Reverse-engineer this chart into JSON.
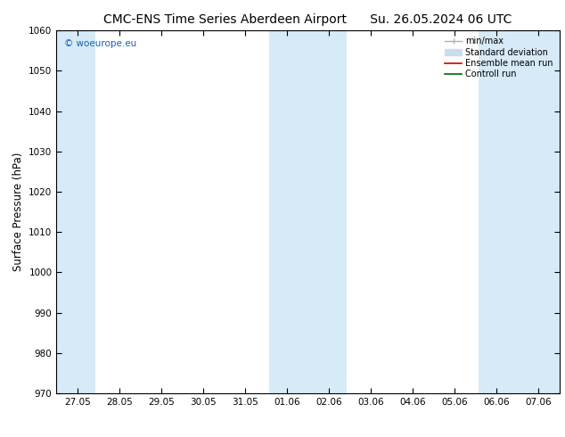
{
  "title_left": "CMC-ENS Time Series Aberdeen Airport",
  "title_right": "Su. 26.05.2024 06 UTC",
  "ylabel": "Surface Pressure (hPa)",
  "ylim": [
    970,
    1060
  ],
  "yticks": [
    970,
    980,
    990,
    1000,
    1010,
    1020,
    1030,
    1040,
    1050,
    1060
  ],
  "xtick_labels": [
    "27.05",
    "28.05",
    "29.05",
    "30.05",
    "31.05",
    "01.06",
    "02.06",
    "03.06",
    "04.06",
    "05.06",
    "06.06",
    "07.06"
  ],
  "xtick_positions": [
    0,
    1,
    2,
    3,
    4,
    5,
    6,
    7,
    8,
    9,
    10,
    11
  ],
  "xlim": [
    -0.5,
    11.5
  ],
  "shaded_bands": [
    {
      "x_start": -0.5,
      "x_end": 0.42
    },
    {
      "x_start": 4.58,
      "x_end": 6.42
    },
    {
      "x_start": 9.58,
      "x_end": 11.5
    }
  ],
  "shade_color": "#d6eaf7",
  "background_color": "#ffffff",
  "watermark_text": "© woeurope.eu",
  "watermark_color": "#1a5fb4",
  "legend_items": [
    {
      "label": "min/max",
      "color": "#b0b0b0",
      "lw": 1.0
    },
    {
      "label": "Standard deviation",
      "color": "#ccdcec",
      "lw": 7
    },
    {
      "label": "Ensemble mean run",
      "color": "#cc0000",
      "lw": 1.2
    },
    {
      "label": "Controll run",
      "color": "#006600",
      "lw": 1.2
    }
  ],
  "title_fontsize": 10,
  "tick_fontsize": 7.5,
  "ylabel_fontsize": 8.5,
  "watermark_fontsize": 7.5
}
